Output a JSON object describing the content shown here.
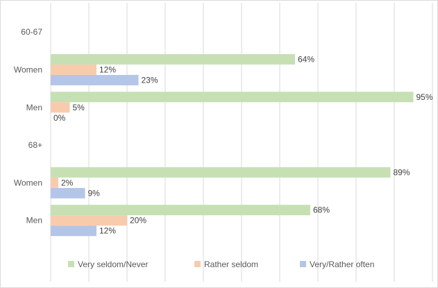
{
  "chart_data": {
    "type": "bar",
    "orientation": "horizontal",
    "title": "",
    "xlabel": "",
    "ylabel": "",
    "xlim": [
      0,
      1
    ],
    "grid": true,
    "legend_position": "bottom",
    "categories": [
      "60-67",
      "Women",
      "Men",
      "68+",
      "Women",
      "Men"
    ],
    "series": [
      {
        "name": "Very seldom/Never",
        "color": "#c6e0b4",
        "values": [
          null,
          0.64,
          0.95,
          null,
          0.89,
          0.68
        ],
        "labels": [
          "",
          "64%",
          "95%",
          "",
          "89%",
          "68%"
        ]
      },
      {
        "name": "Rather seldom",
        "color": "#f8cbad",
        "values": [
          null,
          0.12,
          0.05,
          null,
          0.02,
          0.2
        ],
        "labels": [
          "",
          "12%",
          "5%",
          "",
          "2%",
          "20%"
        ]
      },
      {
        "name": "Very/Rather often",
        "color": "#b4c6e7",
        "values": [
          null,
          0.23,
          0.0,
          null,
          0.09,
          0.12
        ],
        "labels": [
          "",
          "23%",
          "0%",
          "",
          "9%",
          "12%"
        ]
      }
    ]
  }
}
